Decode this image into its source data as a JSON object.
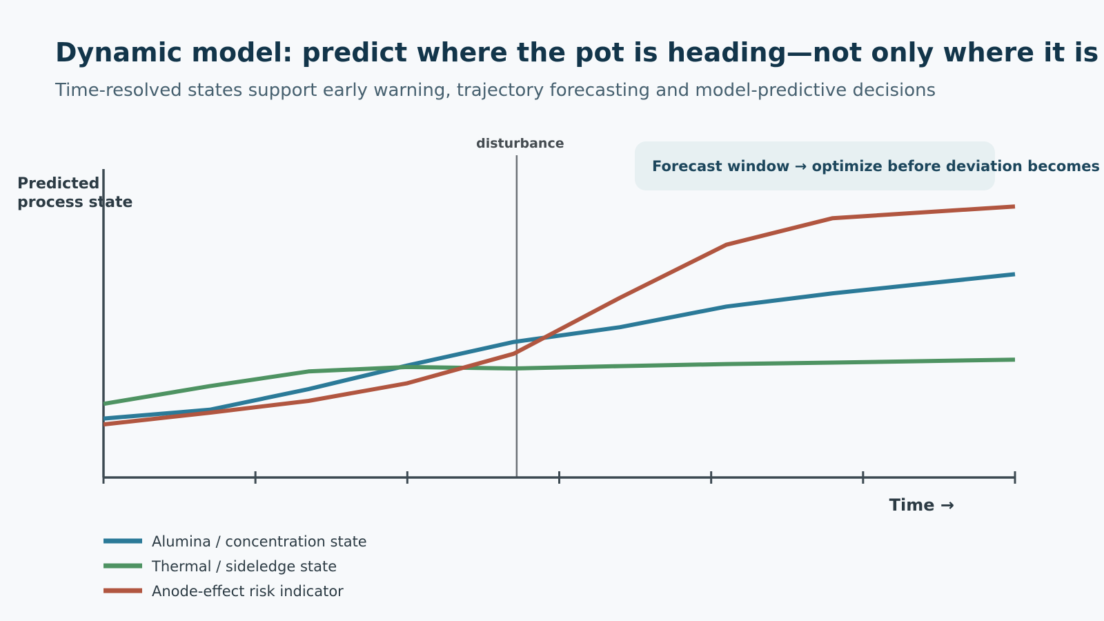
{
  "header": {
    "title": "Dynamic model: predict where the pot is heading—not only where it is",
    "subtitle": "Time-resolved states support early warning, trajectory forecasting and model-predictive decisions"
  },
  "chart_data": {
    "type": "line",
    "title": "Dynamic model: predict where the pot is heading—not only where it is",
    "subtitle": "Time-resolved states support early warning, trajectory forecasting and model-predictive decisions",
    "ylabel_lines": [
      "Predicted",
      "process state"
    ],
    "xlabel": "Time →",
    "xlim": [
      0,
      6
    ],
    "ylim": [
      0,
      10
    ],
    "x_ticks": [
      0,
      1,
      2,
      3,
      4,
      5,
      6
    ],
    "tick_labels_shown": false,
    "grid": false,
    "legend_position": "bottom-left",
    "series": [
      {
        "name": "Alumina / concentration state",
        "color": "#2b7a98",
        "x": [
          0,
          0.7,
          1.35,
          2.0,
          2.7,
          3.4,
          4.1,
          4.8,
          6.0
        ],
        "y": [
          2.0,
          2.3,
          3.0,
          3.8,
          4.6,
          5.1,
          5.8,
          6.25,
          6.9
        ]
      },
      {
        "name": "Thermal / sideledge state",
        "color": "#4e9362",
        "x": [
          0,
          0.7,
          1.35,
          2.0,
          2.7,
          3.4,
          4.1,
          4.8,
          6.0
        ],
        "y": [
          2.5,
          3.1,
          3.6,
          3.75,
          3.7,
          3.78,
          3.85,
          3.9,
          4.0
        ]
      },
      {
        "name": "Anode-effect risk indicator",
        "color": "#b15640",
        "x": [
          0,
          0.7,
          1.35,
          2.0,
          2.7,
          3.4,
          4.1,
          4.8,
          6.0
        ],
        "y": [
          1.8,
          2.2,
          2.6,
          3.2,
          4.2,
          6.1,
          7.9,
          8.8,
          9.2
        ]
      }
    ],
    "annotations": {
      "disturbance": {
        "label": "disturbance",
        "x": 2.72
      },
      "forecast": {
        "label": "Forecast window → optimize before deviation becomes visible"
      }
    }
  },
  "colors": {
    "axis": "#3d4a52",
    "disturbance_line": "#6b7176",
    "forecast_box": "#e7f0f2"
  }
}
